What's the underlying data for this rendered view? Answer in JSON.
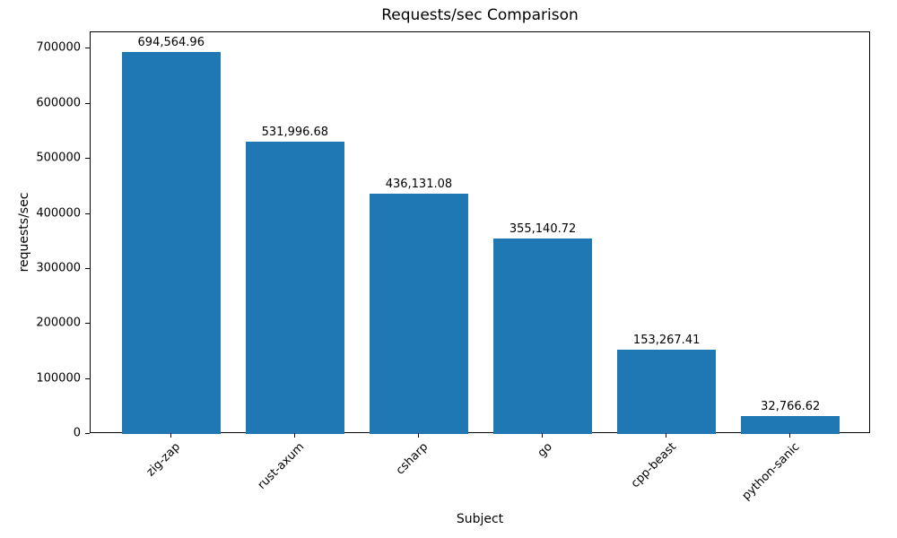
{
  "chart_data": {
    "type": "bar",
    "title": "Requests/sec Comparison",
    "xlabel": "Subject",
    "ylabel": "requests/sec",
    "categories": [
      "zig-zap",
      "rust-axum",
      "csharp",
      "go",
      "cpp-beast",
      "python-sanic"
    ],
    "values": [
      694564.96,
      531996.68,
      436131.08,
      355140.72,
      153267.41,
      32766.62
    ],
    "value_labels": [
      "694,564.96",
      "531,996.68",
      "436,131.08",
      "355,140.72",
      "153,267.41",
      "32,766.62"
    ],
    "yticks": [
      0,
      100000,
      200000,
      300000,
      400000,
      500000,
      600000,
      700000
    ],
    "ylim": [
      0,
      730000
    ],
    "bar_color": "#1f77b4",
    "grid": false,
    "legend": "none"
  }
}
